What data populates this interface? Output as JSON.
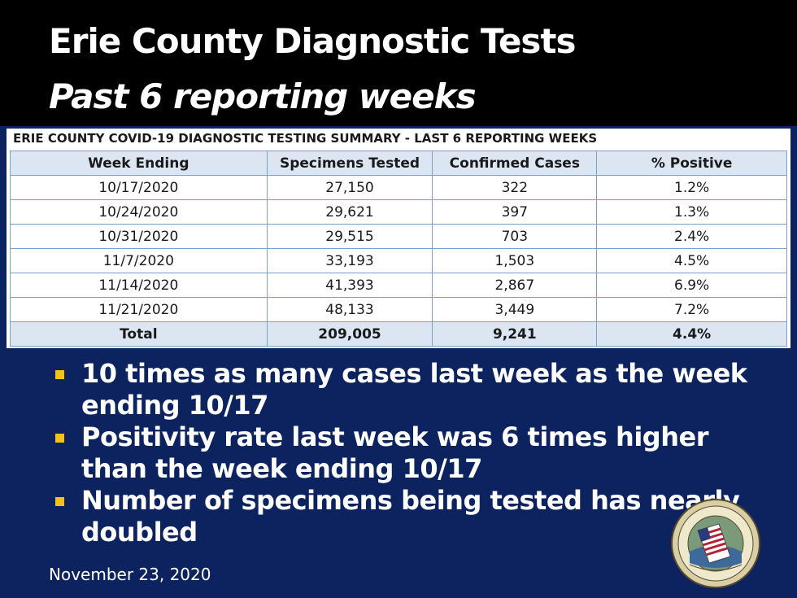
{
  "slide": {
    "title_line1": "Erie County Diagnostic Tests",
    "title_line2": "Past 6 reporting weeks",
    "footer_date": "November 23, 2020",
    "seal_text": "SEAL OF ERIE COUNTY STATE OF NEW YORK",
    "colors": {
      "background": "#0d2360",
      "title_band": "#000000",
      "bullet_marker": "#f2c21b",
      "table_header": "#dce6f3"
    }
  },
  "table": {
    "caption": "ERIE COUNTY COVID-19 DIAGNOSTIC TESTING SUMMARY - LAST 6 REPORTING WEEKS",
    "headers": [
      "Week Ending",
      "Specimens Tested",
      "Confirmed Cases",
      "% Positive"
    ],
    "rows": [
      [
        "10/17/2020",
        "27,150",
        "322",
        "1.2%"
      ],
      [
        "10/24/2020",
        "29,621",
        "397",
        "1.3%"
      ],
      [
        "10/31/2020",
        "29,515",
        "703",
        "2.4%"
      ],
      [
        "11/7/2020",
        "33,193",
        "1,503",
        "4.5%"
      ],
      [
        "11/14/2020",
        "41,393",
        "2,867",
        "6.9%"
      ],
      [
        "11/21/2020",
        "48,133",
        "3,449",
        "7.2%"
      ]
    ],
    "total": [
      "Total",
      "209,005",
      "9,241",
      "4.4%"
    ]
  },
  "bullets": [
    "10 times as many cases last week as the week ending 10/17",
    "Positivity rate last week was 6 times higher than the week ending 10/17",
    "Number of specimens being tested has nearly doubled"
  ]
}
